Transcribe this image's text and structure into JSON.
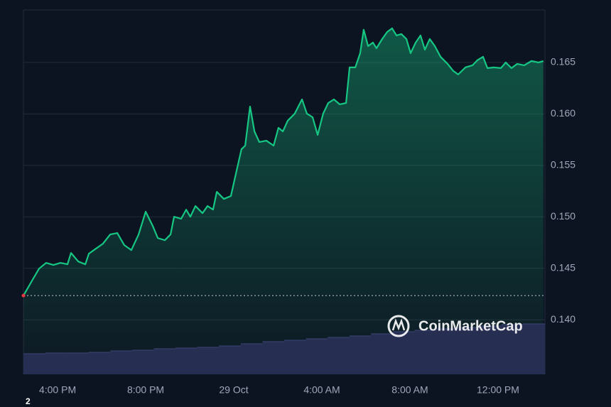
{
  "chart_data": {
    "type": "line",
    "x": [
      2.45,
      2.84,
      3.16,
      3.48,
      3.81,
      4.13,
      4.45,
      4.61,
      4.94,
      5.26,
      5.42,
      5.74,
      6.06,
      6.39,
      6.71,
      7.03,
      7.35,
      7.68,
      8.0,
      8.32,
      8.55,
      8.87,
      9.13,
      9.29,
      9.61,
      9.84,
      10.03,
      10.26,
      10.58,
      10.81,
      11.06,
      11.23,
      11.55,
      11.87,
      12.13,
      12.35,
      12.52,
      12.74,
      12.94,
      13.16,
      13.48,
      13.81,
      14.03,
      14.23,
      14.45,
      14.77,
      15.1,
      15.32,
      15.58,
      15.81,
      16.06,
      16.29,
      16.55,
      16.81,
      17.1,
      17.26,
      17.52,
      17.74,
      17.9,
      18.1,
      18.32,
      18.48,
      18.74,
      18.97,
      19.19,
      19.39,
      19.61,
      19.84,
      20.03,
      20.26,
      20.48,
      20.68,
      20.9,
      21.13,
      21.39,
      21.71,
      21.97,
      22.19,
      22.52,
      22.84,
      23.06,
      23.32,
      23.52,
      23.81,
      24.13,
      24.35,
      24.61,
      24.87,
      25.19,
      25.52,
      25.84,
      26.06
    ],
    "values": [
      0.14235,
      0.1438,
      0.14497,
      0.14553,
      0.14532,
      0.14553,
      0.14539,
      0.14649,
      0.14566,
      0.14539,
      0.14642,
      0.14691,
      0.14739,
      0.14829,
      0.14843,
      0.14725,
      0.14677,
      0.14829,
      0.1505,
      0.14912,
      0.14794,
      0.14773,
      0.14829,
      0.15001,
      0.14981,
      0.1507,
      0.15001,
      0.15105,
      0.15036,
      0.15105,
      0.1507,
      0.15243,
      0.15174,
      0.15202,
      0.1545,
      0.15657,
      0.15692,
      0.16072,
      0.1583,
      0.15727,
      0.1574,
      0.15692,
      0.15865,
      0.1583,
      0.15934,
      0.16003,
      0.16141,
      0.16003,
      0.15968,
      0.15796,
      0.16003,
      0.16106,
      0.16141,
      0.16093,
      0.16106,
      0.16452,
      0.16452,
      0.1659,
      0.16818,
      0.16659,
      0.16693,
      0.16638,
      0.16728,
      0.16797,
      0.16831,
      0.16762,
      0.16776,
      0.16728,
      0.1659,
      0.16693,
      0.16762,
      0.16624,
      0.16728,
      0.16659,
      0.16555,
      0.16486,
      0.16417,
      0.16383,
      0.16452,
      0.16472,
      0.16521,
      0.16555,
      0.16445,
      0.16452,
      0.16445,
      0.165,
      0.16445,
      0.16486,
      0.16472,
      0.16514,
      0.165,
      0.16514
    ],
    "color": "#16c784",
    "xlim": [
      2.45,
      26.13
    ],
    "xticks": [
      {
        "value": 4,
        "label": "4:00 PM"
      },
      {
        "value": 8,
        "label": "8:00 PM"
      },
      {
        "value": 12,
        "label": "29 Oct"
      },
      {
        "value": 16,
        "label": "4:00 AM"
      },
      {
        "value": 20,
        "label": "8:00 AM"
      },
      {
        "value": 24,
        "label": "12:00 PM"
      }
    ],
    "ylim": [
      0.1347,
      0.1701
    ],
    "yticks": [
      {
        "value": 0.14,
        "label": "0.140"
      },
      0.145,
      {
        "value": 0.15,
        "label": "0.150"
      },
      0.155,
      {
        "value": 0.16,
        "label": "0.160"
      },
      0.165
    ],
    "grid": true,
    "volume": {
      "values": [
        29,
        30,
        30,
        31,
        33,
        34,
        36,
        37,
        38,
        40,
        43,
        46,
        48,
        50,
        52,
        54,
        57,
        60,
        62,
        64,
        66,
        68,
        70,
        71
      ],
      "color": "#262e52",
      "ylim": [
        0,
        100
      ]
    },
    "watermark": "CoinMarketCap",
    "corner_label": "2"
  }
}
